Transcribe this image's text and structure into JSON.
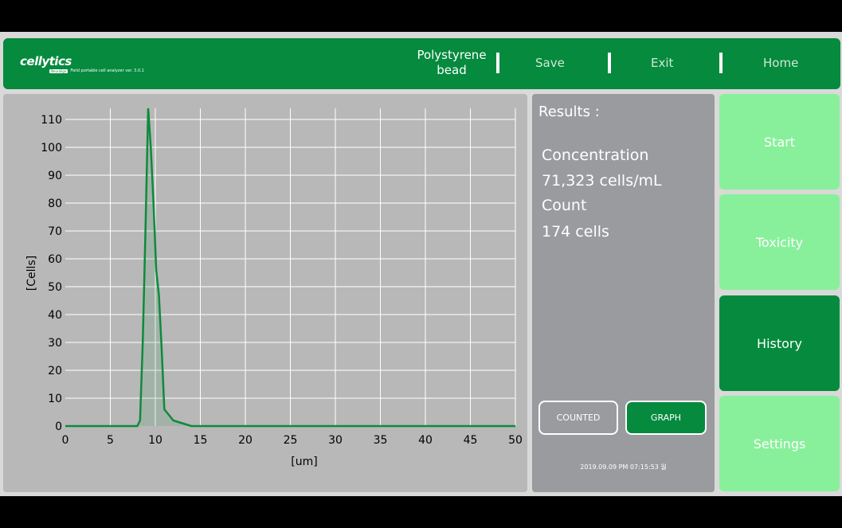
{
  "header": {
    "logo_text": "cellytics",
    "logo_tag": "Neuralign",
    "logo_subtitle": "Field portable cell analyzer ver. 3.0.1",
    "sample_line1": "Polystyrene",
    "sample_line2": "bead",
    "save_label": "Save",
    "exit_label": "Exit",
    "home_label": "Home"
  },
  "results": {
    "title": "Results :",
    "concentration_label": "Concentration",
    "concentration_value": "71,323 cells/mL",
    "count_label": "Count",
    "count_value": "174 cells",
    "counted_button": "COUNTED",
    "graph_button": "GRAPH",
    "timestamp": "2019.09.09 PM 07:15:53 월"
  },
  "side": {
    "start": "Start",
    "toxicity": "Toxicity",
    "history": "History",
    "settings": "Settings"
  },
  "colors": {
    "brand_green": "#058a3e",
    "light_green": "#88f09a",
    "panel_gray": "#9a9b9e",
    "chart_bg": "#b8b8b8",
    "series": "#0e8a3c"
  },
  "chart_data": {
    "type": "area",
    "xlabel": "[um]",
    "ylabel": "[Cells]",
    "xlim": [
      0,
      50
    ],
    "ylim": [
      0,
      110
    ],
    "xticks": [
      0,
      5,
      10,
      15,
      20,
      25,
      30,
      35,
      40,
      45,
      50
    ],
    "yticks": [
      0,
      10,
      20,
      30,
      40,
      50,
      60,
      70,
      80,
      90,
      100,
      110
    ],
    "grid": true,
    "x": [
      0,
      8,
      8.3,
      8.6,
      8.9,
      9.2,
      9.5,
      9.8,
      10.1,
      10.4,
      10.7,
      11,
      11.5,
      12,
      13,
      14,
      15,
      20,
      25,
      30,
      35,
      40,
      45,
      50
    ],
    "y": [
      0,
      0,
      2,
      30,
      70,
      114,
      100,
      80,
      56,
      47,
      28,
      6,
      4,
      2,
      1,
      0,
      0,
      0,
      0,
      0,
      0,
      0,
      0,
      0
    ]
  }
}
